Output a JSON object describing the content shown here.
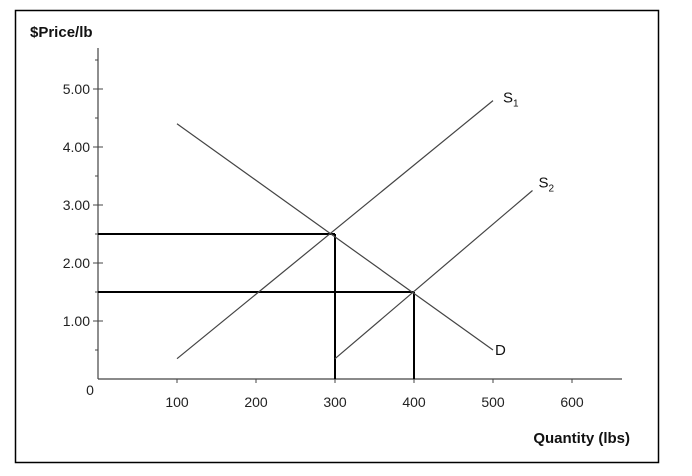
{
  "chart_data": {
    "type": "line",
    "ylabel": "$Price/lb",
    "xlabel": "Quantity (lbs)",
    "origin_label": "0",
    "xlim": [
      0,
      650
    ],
    "ylim": [
      0,
      5.5
    ],
    "x_ticks": [
      {
        "value": 100,
        "label": "100"
      },
      {
        "value": 200,
        "label": "200"
      },
      {
        "value": 300,
        "label": "300"
      },
      {
        "value": 400,
        "label": "400"
      },
      {
        "value": 500,
        "label": "500"
      },
      {
        "value": 600,
        "label": "600"
      }
    ],
    "y_ticks": [
      {
        "value": 1,
        "label": "1.00"
      },
      {
        "value": 2,
        "label": "2.00"
      },
      {
        "value": 3,
        "label": "3.00"
      },
      {
        "value": 4,
        "label": "4.00"
      },
      {
        "value": 5,
        "label": "5.00"
      }
    ],
    "y_minor_ticks": [
      0.5,
      1.5,
      2.5,
      3.5,
      4.5,
      5.5
    ],
    "grid": false,
    "series": [
      {
        "id": "s1",
        "label_main": "S",
        "label_sub": "1",
        "points": [
          [
            100,
            0.35
          ],
          [
            500,
            4.8
          ]
        ]
      },
      {
        "id": "s2",
        "label_main": "S",
        "label_sub": "2",
        "points": [
          [
            300,
            0.35
          ],
          [
            550,
            3.25
          ]
        ]
      },
      {
        "id": "d",
        "label_main": "D",
        "label_sub": "",
        "points": [
          [
            100,
            4.4
          ],
          [
            500,
            0.5
          ]
        ]
      }
    ],
    "equilibria": [
      {
        "x": 300,
        "y": 2.5
      },
      {
        "x": 400,
        "y": 1.5
      }
    ],
    "colors": {
      "curve": "#444444",
      "guide": "#000000",
      "axis": "#444444",
      "frame": "#000000"
    }
  }
}
